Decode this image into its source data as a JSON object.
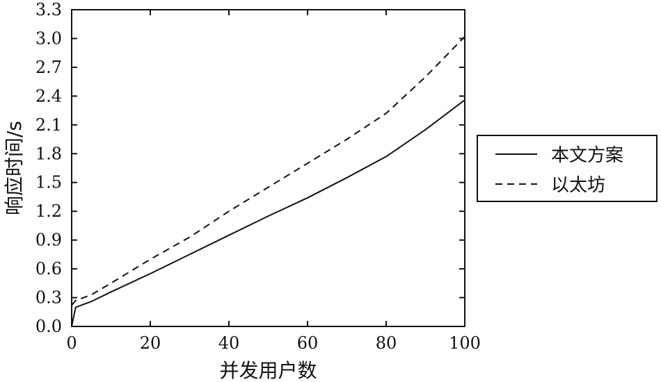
{
  "chart_data": {
    "type": "line",
    "xlabel": "并发用户数",
    "ylabel": "响应时间/s",
    "xlim": [
      0,
      100
    ],
    "ylim": [
      0,
      3.3
    ],
    "xticks": [
      "0",
      "20",
      "40",
      "60",
      "80",
      "100"
    ],
    "yticks": [
      "0.0",
      "0.3",
      "0.6",
      "0.9",
      "1.2",
      "1.5",
      "1.8",
      "2.1",
      "2.4",
      "2.7",
      "3.0",
      "3.3"
    ],
    "grid": false,
    "legend_position": "right",
    "x": [
      0,
      1,
      5,
      10,
      20,
      30,
      40,
      50,
      60,
      70,
      80,
      90,
      100
    ],
    "series": [
      {
        "name": "本文方案",
        "style": "solid",
        "color": "#111111",
        "values": [
          0.0,
          0.2,
          0.26,
          0.36,
          0.55,
          0.75,
          0.95,
          1.15,
          1.34,
          1.55,
          1.77,
          2.05,
          2.36
        ]
      },
      {
        "name": "以太坊",
        "style": "dashed",
        "color": "#111111",
        "values": [
          0.22,
          0.27,
          0.33,
          0.45,
          0.7,
          0.93,
          1.2,
          1.45,
          1.7,
          1.95,
          2.22,
          2.6,
          3.02
        ]
      }
    ]
  }
}
